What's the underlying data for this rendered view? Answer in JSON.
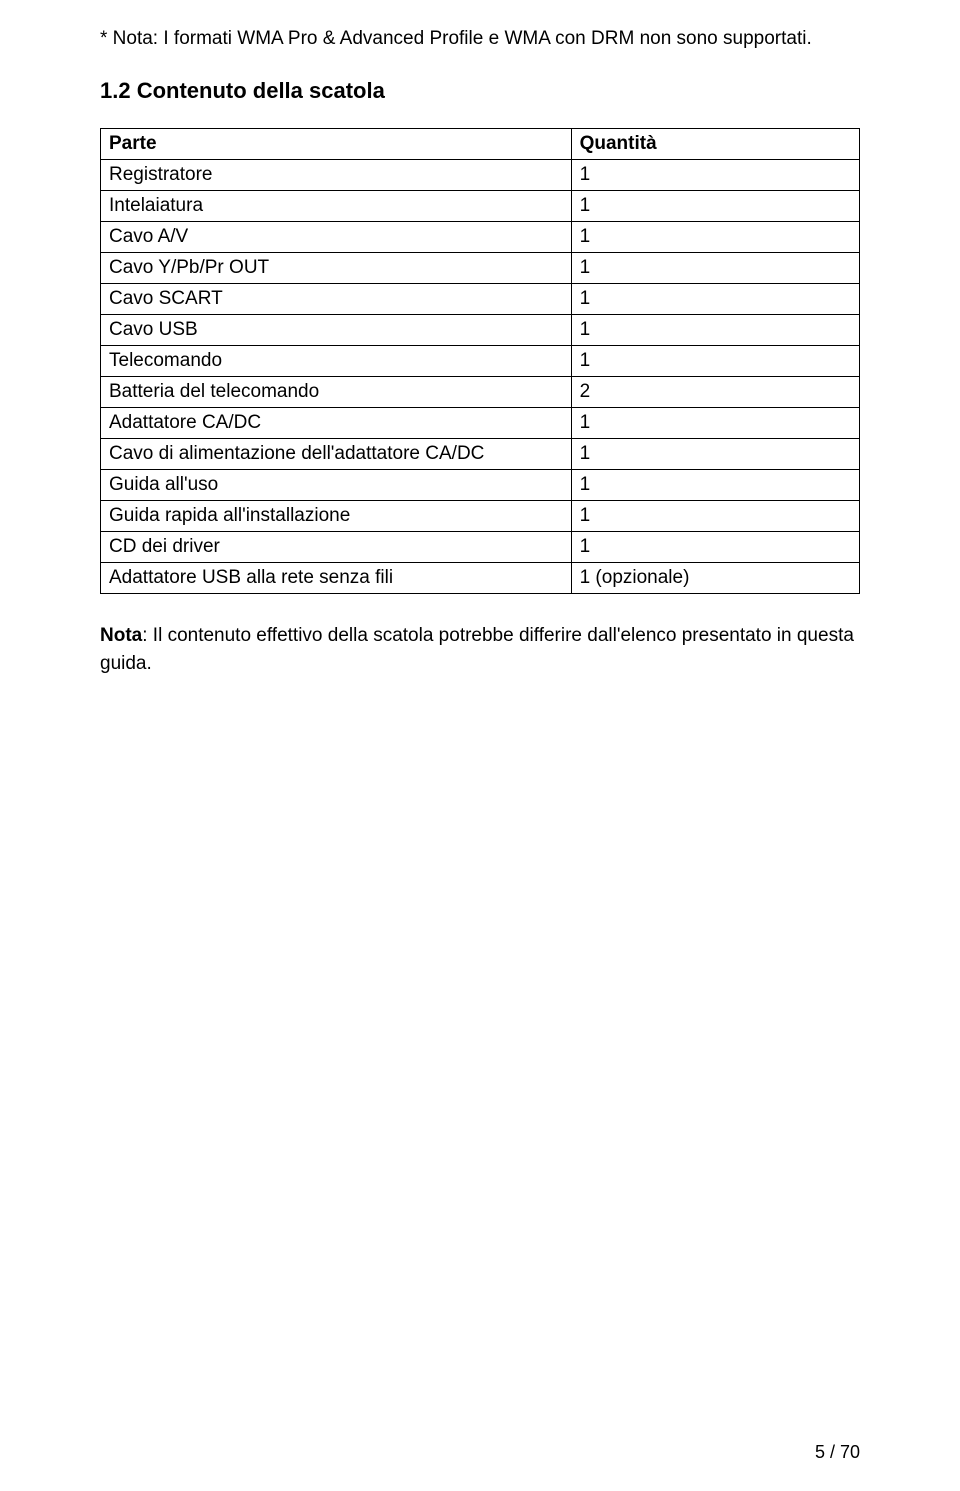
{
  "topNote": "* Nota: I formati WMA Pro & Advanced Profile e WMA con DRM non sono supportati.",
  "sectionTitle": "1.2 Contenuto della scatola",
  "table": {
    "headers": {
      "part": "Parte",
      "qty": "Quantità"
    },
    "rows": [
      {
        "part": "Registratore",
        "qty": "1"
      },
      {
        "part": "Intelaiatura",
        "qty": "1"
      },
      {
        "part": "Cavo A/V",
        "qty": "1"
      },
      {
        "part": "Cavo Y/Pb/Pr OUT",
        "qty": "1"
      },
      {
        "part": "Cavo SCART",
        "qty": "1"
      },
      {
        "part": "Cavo USB",
        "qty": "1"
      },
      {
        "part": "Telecomando",
        "qty": "1"
      },
      {
        "part": "Batteria del telecomando",
        "qty": "2"
      },
      {
        "part": "Adattatore CA/DC",
        "qty": "1"
      },
      {
        "part": "Cavo di alimentazione dell'adattatore CA/DC",
        "qty": "1"
      },
      {
        "part": "Guida all'uso",
        "qty": "1"
      },
      {
        "part": "Guida rapida all'installazione",
        "qty": "1"
      },
      {
        "part": "CD dei driver",
        "qty": "1"
      },
      {
        "part": "Adattatore USB alla rete senza fili",
        "qty": "1 (opzionale)"
      }
    ]
  },
  "nota": {
    "label": "Nota",
    "text": ": Il contenuto effettivo della scatola potrebbe differire dall'elenco presentato in questa guida."
  },
  "pageNumber": "5 / 70"
}
